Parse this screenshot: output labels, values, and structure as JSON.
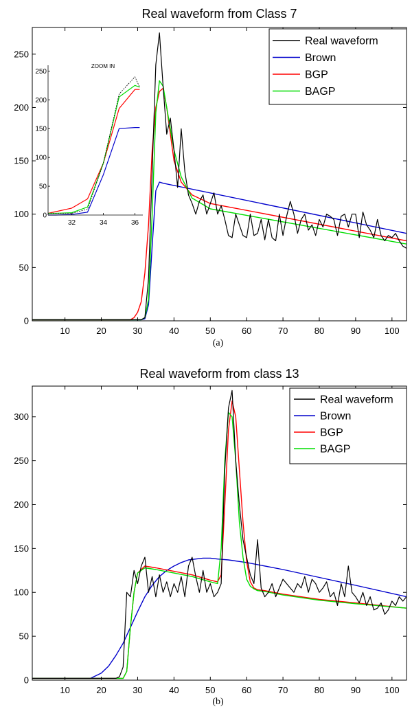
{
  "chart_data": [
    {
      "type": "line",
      "title": "Real waveform from Class  7",
      "caption": "(a)",
      "xlim": [
        1,
        104
      ],
      "ylim": [
        0,
        275
      ],
      "x_ticks": [
        10,
        20,
        30,
        40,
        50,
        60,
        70,
        80,
        90,
        100
      ],
      "y_ticks": [
        0,
        50,
        100,
        150,
        200,
        250
      ],
      "legend_position": "top-right",
      "series": [
        {
          "name": "Real waveform",
          "color": "#000000",
          "x": [
            1,
            30,
            31,
            32,
            33,
            34,
            35,
            36,
            37,
            38,
            39,
            40,
            41,
            42,
            43,
            44,
            45,
            46,
            47,
            48,
            49,
            50,
            51,
            52,
            53,
            54,
            55,
            56,
            57,
            58,
            59,
            60,
            61,
            62,
            63,
            64,
            65,
            66,
            67,
            68,
            69,
            70,
            71,
            72,
            73,
            74,
            75,
            76,
            77,
            78,
            79,
            80,
            81,
            82,
            83,
            84,
            85,
            86,
            87,
            88,
            89,
            90,
            91,
            92,
            93,
            94,
            95,
            96,
            97,
            98,
            99,
            100,
            101,
            102,
            103,
            104
          ],
          "y": [
            1,
            1,
            1,
            3,
            40,
            140,
            240,
            270,
            220,
            175,
            190,
            160,
            125,
            180,
            140,
            118,
            110,
            100,
            112,
            118,
            100,
            110,
            120,
            100,
            108,
            95,
            80,
            78,
            100,
            90,
            80,
            78,
            100,
            80,
            82,
            95,
            76,
            95,
            78,
            75,
            100,
            80,
            98,
            112,
            100,
            82,
            95,
            100,
            85,
            90,
            80,
            95,
            88,
            100,
            98,
            95,
            80,
            98,
            100,
            88,
            100,
            100,
            78,
            102,
            90,
            85,
            78,
            95,
            80,
            75,
            80,
            78,
            82,
            75,
            70,
            68
          ]
        },
        {
          "name": "Brown",
          "color": "#0000cc",
          "x": [
            1,
            31,
            32,
            33,
            34,
            35,
            36,
            37,
            104
          ],
          "y": [
            1,
            1,
            2,
            15,
            70,
            122,
            130,
            129,
            82
          ]
        },
        {
          "name": "BGP",
          "color": "#ff0000",
          "x": [
            1,
            28,
            29,
            30,
            31,
            32,
            33,
            34,
            35,
            36,
            37,
            38,
            39,
            40,
            42,
            45,
            50,
            104
          ],
          "y": [
            1,
            1,
            3,
            8,
            18,
            45,
            90,
            160,
            200,
            215,
            218,
            200,
            175,
            150,
            130,
            118,
            110,
            75
          ]
        },
        {
          "name": "BAGP",
          "color": "#00dd00",
          "x": [
            1,
            31,
            32,
            33,
            34,
            35,
            36,
            37,
            38,
            39,
            40,
            42,
            45,
            50,
            104
          ],
          "y": [
            1,
            1,
            3,
            20,
            100,
            195,
            225,
            220,
            200,
            180,
            160,
            135,
            115,
            105,
            72
          ]
        }
      ],
      "inset": {
        "title": "ZOOM IN",
        "xlim": [
          30.5,
          36.5
        ],
        "ylim": [
          0,
          260
        ],
        "x_ticks": [
          32,
          34,
          36
        ],
        "y_ticks": [
          0,
          50,
          100,
          150,
          200,
          250
        ],
        "series": [
          {
            "name": "Real waveform",
            "color": "#000000",
            "x": [
              30.5,
              31,
              32,
              33,
              34,
              35,
              36,
              36.3
            ],
            "y": [
              3,
              3,
              3,
              10,
              90,
              210,
              240,
              222
            ]
          },
          {
            "name": "Brown",
            "color": "#0000cc",
            "x": [
              30.5,
              31,
              32,
              33,
              34,
              35,
              36,
              36.3
            ],
            "y": [
              0,
              0,
              1,
              5,
              70,
              150,
              152,
              152
            ]
          },
          {
            "name": "BGP",
            "color": "#ff0000",
            "x": [
              30.5,
              31,
              32,
              33,
              34,
              35,
              36,
              36.3
            ],
            "y": [
              3,
              6,
              12,
              28,
              90,
              185,
              218,
              218
            ]
          },
          {
            "name": "BAGP",
            "color": "#00dd00",
            "x": [
              30.5,
              31,
              32,
              33,
              34,
              35,
              36,
              36.3
            ],
            "y": [
              3,
              3,
              4,
              14,
              90,
              205,
              225,
              222
            ]
          }
        ]
      }
    },
    {
      "type": "line",
      "title": "Real waveform from class 13",
      "caption": "(b)",
      "xlim": [
        1,
        104
      ],
      "ylim": [
        0,
        335
      ],
      "x_ticks": [
        10,
        20,
        30,
        40,
        50,
        60,
        70,
        80,
        90,
        100
      ],
      "y_ticks": [
        0,
        50,
        100,
        150,
        200,
        250,
        300
      ],
      "legend_position": "top-right",
      "series": [
        {
          "name": "Real waveform",
          "color": "#000000",
          "x": [
            1,
            24,
            25,
            26,
            27,
            28,
            29,
            30,
            31,
            32,
            33,
            34,
            35,
            36,
            37,
            38,
            39,
            40,
            41,
            42,
            43,
            44,
            45,
            46,
            47,
            48,
            49,
            50,
            51,
            52,
            53,
            54,
            55,
            56,
            57,
            58,
            59,
            60,
            61,
            62,
            63,
            64,
            65,
            66,
            67,
            68,
            69,
            70,
            71,
            72,
            73,
            74,
            75,
            76,
            77,
            78,
            79,
            80,
            81,
            82,
            83,
            84,
            85,
            86,
            87,
            88,
            89,
            90,
            91,
            92,
            93,
            94,
            95,
            96,
            97,
            98,
            99,
            100,
            101,
            102,
            103,
            104
          ],
          "y": [
            2,
            2,
            4,
            15,
            100,
            95,
            125,
            110,
            130,
            140,
            100,
            118,
            95,
            120,
            100,
            112,
            95,
            110,
            100,
            118,
            95,
            130,
            140,
            118,
            100,
            125,
            100,
            110,
            95,
            100,
            110,
            240,
            310,
            330,
            250,
            200,
            160,
            140,
            120,
            110,
            160,
            105,
            95,
            100,
            110,
            95,
            105,
            115,
            110,
            105,
            100,
            110,
            105,
            118,
            100,
            115,
            110,
            100,
            105,
            112,
            95,
            100,
            85,
            110,
            95,
            130,
            100,
            95,
            88,
            100,
            85,
            95,
            80,
            82,
            88,
            75,
            80,
            90,
            85,
            95,
            90,
            95
          ]
        },
        {
          "name": "Brown",
          "color": "#0000cc",
          "x": [
            1,
            17,
            20,
            22,
            24,
            26,
            28,
            30,
            32,
            34,
            36,
            38,
            40,
            42,
            44,
            46,
            48,
            50,
            52,
            55,
            60,
            70,
            80,
            90,
            104
          ],
          "y": [
            2,
            2,
            8,
            16,
            28,
            42,
            60,
            78,
            95,
            108,
            118,
            125,
            130,
            134,
            137,
            138,
            139,
            139,
            138,
            137,
            134,
            126,
            117,
            108,
            95
          ]
        },
        {
          "name": "BGP",
          "color": "#ff0000",
          "x": [
            1,
            26,
            27,
            28,
            29,
            30,
            32,
            35,
            40,
            45,
            50,
            52,
            53,
            54,
            55,
            56,
            57,
            58,
            59,
            60,
            61,
            62,
            63,
            65,
            70,
            80,
            90,
            104
          ],
          "y": [
            2,
            2,
            10,
            60,
            100,
            122,
            130,
            128,
            124,
            120,
            114,
            112,
            120,
            200,
            285,
            318,
            300,
            240,
            180,
            135,
            112,
            105,
            103,
            102,
            98,
            92,
            88,
            82
          ]
        },
        {
          "name": "BAGP",
          "color": "#00dd00",
          "x": [
            1,
            26,
            27,
            28,
            29,
            30,
            32,
            35,
            40,
            45,
            50,
            52,
            53,
            54,
            55,
            56,
            57,
            58,
            59,
            60,
            61,
            62,
            63,
            65,
            70,
            80,
            90,
            104
          ],
          "y": [
            2,
            2,
            10,
            60,
            100,
            122,
            128,
            126,
            122,
            118,
            112,
            110,
            150,
            250,
            305,
            300,
            250,
            180,
            140,
            115,
            107,
            104,
            102,
            101,
            97,
            91,
            87,
            82
          ]
        }
      ]
    }
  ]
}
